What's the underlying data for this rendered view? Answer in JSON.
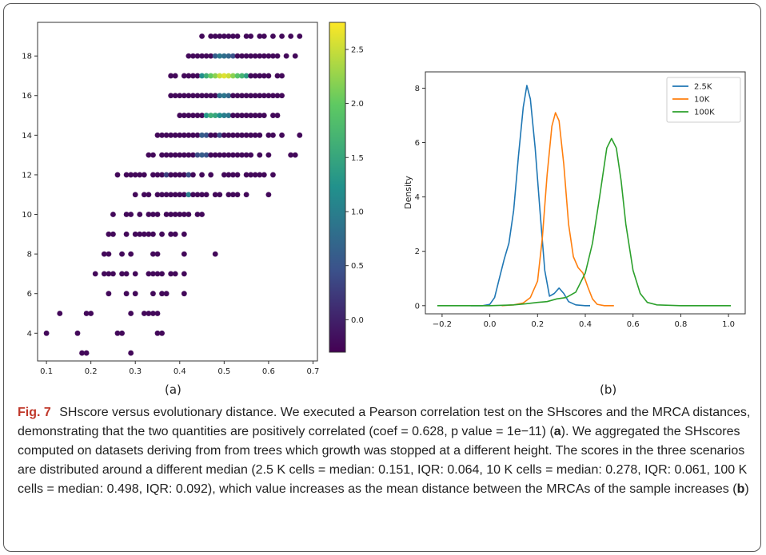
{
  "figure": {
    "panel_a_label": "(a)",
    "panel_b_label": "(b)",
    "caption": {
      "fig_label": "Fig. 7",
      "text_1": "SHscore versus evolutionary distance. We executed a Pearson correlation test on the SHscores and the MRCA distances, demonstrating that the two quantities are positively correlated (coef = 0.628, p value = 1e−11) (",
      "ref_a": "a",
      "text_2": "). We aggregated the SHscores computed on datasets deriving from from trees which growth was stopped at a different height. The scores in the three scenarios are distributed around a different median (2.5 K cells = median: 0.151, IQR: 0.064, 10 K cells = median: 0.278, IQR: 0.061, 100 K cells = median: 0.498, IQR: 0.092), which value increases as the mean distance between the MRCAs of the sample increases (",
      "ref_b": "b",
      "text_3": ")"
    }
  },
  "chart_data": [
    {
      "type": "scatter",
      "title": "",
      "xlabel": "",
      "ylabel": "",
      "xlim": [
        0.08,
        0.71
      ],
      "ylim": [
        2.6,
        19.7
      ],
      "xticks": [
        "0.1",
        "0.2",
        "0.3",
        "0.4",
        "0.5",
        "0.6",
        "0.7"
      ],
      "yticks": [
        "4",
        "6",
        "8",
        "10",
        "12",
        "14",
        "16",
        "18"
      ],
      "colorbar": {
        "min": -0.3,
        "max": 2.75,
        "ticks": [
          "0.0",
          "0.5",
          "1.0",
          "1.5",
          "2.0",
          "2.5"
        ],
        "colormap": "viridis"
      },
      "rows": [
        {
          "y": 19,
          "xs": [
            0.45,
            0.47,
            0.48,
            0.49,
            0.5,
            0.51,
            0.52,
            0.53,
            0.55,
            0.56,
            0.58,
            0.59,
            0.61,
            0.63,
            0.65,
            0.67
          ]
        },
        {
          "y": 18,
          "xs": [
            0.42,
            0.43,
            0.44,
            0.45,
            0.46,
            0.47,
            0.48,
            0.49,
            0.5,
            0.51,
            0.52,
            0.53,
            0.54,
            0.55,
            0.56,
            0.57,
            0.58,
            0.59,
            0.6,
            0.61,
            0.62,
            0.64,
            0.66
          ]
        },
        {
          "y": 17,
          "xs": [
            0.38,
            0.39,
            0.41,
            0.42,
            0.43,
            0.44,
            0.45,
            0.46,
            0.47,
            0.48,
            0.49,
            0.5,
            0.51,
            0.52,
            0.53,
            0.54,
            0.55,
            0.56,
            0.57,
            0.58,
            0.59,
            0.6,
            0.62,
            0.63
          ]
        },
        {
          "y": 16,
          "xs": [
            0.38,
            0.39,
            0.4,
            0.41,
            0.42,
            0.43,
            0.44,
            0.45,
            0.46,
            0.47,
            0.48,
            0.49,
            0.5,
            0.51,
            0.52,
            0.53,
            0.54,
            0.55,
            0.56,
            0.57,
            0.58,
            0.59,
            0.6,
            0.61,
            0.62,
            0.63
          ]
        },
        {
          "y": 15,
          "xs": [
            0.4,
            0.41,
            0.42,
            0.43,
            0.44,
            0.45,
            0.46,
            0.47,
            0.48,
            0.49,
            0.5,
            0.51,
            0.52,
            0.53,
            0.54,
            0.55,
            0.56,
            0.57,
            0.58,
            0.59,
            0.61,
            0.62
          ]
        },
        {
          "y": 14,
          "xs": [
            0.35,
            0.36,
            0.37,
            0.38,
            0.39,
            0.4,
            0.41,
            0.42,
            0.43,
            0.44,
            0.45,
            0.46,
            0.47,
            0.48,
            0.49,
            0.5,
            0.51,
            0.52,
            0.53,
            0.54,
            0.55,
            0.56,
            0.57,
            0.58,
            0.6,
            0.61,
            0.63,
            0.67
          ]
        },
        {
          "y": 13,
          "xs": [
            0.33,
            0.34,
            0.36,
            0.37,
            0.38,
            0.39,
            0.4,
            0.41,
            0.42,
            0.43,
            0.44,
            0.45,
            0.46,
            0.47,
            0.48,
            0.49,
            0.5,
            0.51,
            0.52,
            0.53,
            0.54,
            0.55,
            0.56,
            0.58,
            0.6,
            0.65,
            0.66
          ]
        },
        {
          "y": 12,
          "xs": [
            0.26,
            0.28,
            0.29,
            0.3,
            0.31,
            0.32,
            0.34,
            0.35,
            0.36,
            0.37,
            0.38,
            0.39,
            0.4,
            0.41,
            0.42,
            0.43,
            0.45,
            0.47,
            0.5,
            0.51,
            0.52,
            0.53,
            0.55,
            0.56,
            0.57,
            0.58,
            0.59,
            0.61
          ]
        },
        {
          "y": 11,
          "xs": [
            0.3,
            0.32,
            0.33,
            0.35,
            0.36,
            0.37,
            0.38,
            0.39,
            0.4,
            0.41,
            0.42,
            0.43,
            0.44,
            0.45,
            0.46,
            0.48,
            0.49,
            0.51,
            0.52,
            0.53,
            0.55,
            0.6
          ]
        },
        {
          "y": 10,
          "xs": [
            0.25,
            0.28,
            0.29,
            0.31,
            0.33,
            0.34,
            0.35,
            0.37,
            0.38,
            0.39,
            0.4,
            0.41,
            0.42,
            0.44,
            0.45
          ]
        },
        {
          "y": 9,
          "xs": [
            0.24,
            0.25,
            0.28,
            0.3,
            0.31,
            0.32,
            0.33,
            0.34,
            0.36,
            0.38,
            0.39,
            0.41
          ]
        },
        {
          "y": 8,
          "xs": [
            0.23,
            0.24,
            0.27,
            0.29,
            0.34,
            0.35,
            0.41,
            0.48
          ]
        },
        {
          "y": 7,
          "xs": [
            0.21,
            0.23,
            0.24,
            0.25,
            0.27,
            0.28,
            0.3,
            0.33,
            0.34,
            0.35,
            0.36,
            0.38,
            0.39,
            0.41
          ]
        },
        {
          "y": 6,
          "xs": [
            0.24,
            0.28,
            0.3,
            0.34,
            0.36,
            0.37,
            0.41
          ]
        },
        {
          "y": 5,
          "xs": [
            0.13,
            0.19,
            0.2,
            0.29,
            0.32,
            0.33,
            0.34,
            0.35
          ]
        },
        {
          "y": 4,
          "xs": [
            0.1,
            0.17,
            0.26,
            0.27,
            0.35,
            0.36
          ]
        },
        {
          "y": 3,
          "xs": [
            0.18,
            0.19,
            0.29
          ]
        }
      ],
      "hot_points": [
        {
          "x": 0.5,
          "y": 17,
          "level": 2.6
        },
        {
          "x": 0.49,
          "y": 17,
          "level": 2.5
        },
        {
          "x": 0.51,
          "y": 17,
          "level": 2.5
        },
        {
          "x": 0.48,
          "y": 17,
          "level": 2.2
        },
        {
          "x": 0.52,
          "y": 17,
          "level": 2.2
        },
        {
          "x": 0.47,
          "y": 17,
          "level": 2.0
        },
        {
          "x": 0.53,
          "y": 17,
          "level": 1.9
        },
        {
          "x": 0.54,
          "y": 17,
          "level": 1.7
        },
        {
          "x": 0.46,
          "y": 17,
          "level": 1.6
        },
        {
          "x": 0.55,
          "y": 17,
          "level": 1.4
        },
        {
          "x": 0.45,
          "y": 17,
          "level": 1.2
        },
        {
          "x": 0.47,
          "y": 15,
          "level": 1.6
        },
        {
          "x": 0.48,
          "y": 15,
          "level": 1.5
        },
        {
          "x": 0.46,
          "y": 15,
          "level": 1.3
        },
        {
          "x": 0.49,
          "y": 15,
          "level": 1.2
        },
        {
          "x": 0.5,
          "y": 15,
          "level": 1.0
        },
        {
          "x": 0.51,
          "y": 15,
          "level": 0.9
        },
        {
          "x": 0.5,
          "y": 16,
          "level": 0.9
        },
        {
          "x": 0.49,
          "y": 16,
          "level": 0.8
        },
        {
          "x": 0.51,
          "y": 16,
          "level": 0.7
        },
        {
          "x": 0.49,
          "y": 18,
          "level": 0.9
        },
        {
          "x": 0.5,
          "y": 18,
          "level": 0.8
        },
        {
          "x": 0.51,
          "y": 18,
          "level": 0.7
        },
        {
          "x": 0.48,
          "y": 18,
          "level": 0.6
        },
        {
          "x": 0.52,
          "y": 18,
          "level": 0.5
        },
        {
          "x": 0.45,
          "y": 13,
          "level": 0.6
        },
        {
          "x": 0.46,
          "y": 13,
          "level": 0.5
        },
        {
          "x": 0.44,
          "y": 13,
          "level": 0.4
        },
        {
          "x": 0.45,
          "y": 14,
          "level": 0.6
        },
        {
          "x": 0.46,
          "y": 14,
          "level": 0.5
        },
        {
          "x": 0.42,
          "y": 11,
          "level": 1.0
        },
        {
          "x": 0.42,
          "y": 12,
          "level": 0.4
        },
        {
          "x": 0.37,
          "y": 12,
          "level": 0.3
        },
        {
          "x": 0.49,
          "y": 14,
          "level": 0.4
        }
      ]
    },
    {
      "type": "line",
      "title": "",
      "xlabel": "",
      "ylabel": "Density",
      "xlim": [
        -0.27,
        1.07
      ],
      "ylim": [
        -0.3,
        8.6
      ],
      "xticks": [
        "−0.2",
        "0.0",
        "0.2",
        "0.4",
        "0.6",
        "0.8",
        "1.0"
      ],
      "yticks": [
        "0",
        "2",
        "4",
        "6",
        "8"
      ],
      "legend_position": "top-right",
      "series": [
        {
          "name": "2.5K",
          "color": "#1f77b4",
          "x": [
            -0.08,
            -0.03,
            0.0,
            0.02,
            0.04,
            0.06,
            0.08,
            0.1,
            0.12,
            0.14,
            0.155,
            0.17,
            0.19,
            0.21,
            0.23,
            0.25,
            0.27,
            0.29,
            0.31,
            0.33,
            0.36,
            0.4,
            0.42
          ],
          "y": [
            0.0,
            0.0,
            0.05,
            0.3,
            1.0,
            1.7,
            2.3,
            3.5,
            5.5,
            7.3,
            8.1,
            7.6,
            5.8,
            3.5,
            1.3,
            0.35,
            0.45,
            0.65,
            0.45,
            0.15,
            0.03,
            0.0,
            0.0
          ]
        },
        {
          "name": "10K",
          "color": "#ff7f0e",
          "x": [
            0.05,
            0.1,
            0.14,
            0.17,
            0.2,
            0.22,
            0.24,
            0.26,
            0.275,
            0.29,
            0.31,
            0.33,
            0.35,
            0.37,
            0.39,
            0.41,
            0.43,
            0.45,
            0.48,
            0.52
          ],
          "y": [
            0.0,
            0.03,
            0.1,
            0.3,
            0.9,
            2.5,
            4.8,
            6.6,
            7.1,
            6.8,
            5.2,
            3.0,
            1.8,
            1.4,
            1.2,
            0.7,
            0.25,
            0.05,
            0.0,
            0.0
          ]
        },
        {
          "name": "100K",
          "color": "#2ca02c",
          "x": [
            -0.22,
            -0.1,
            0.0,
            0.1,
            0.15,
            0.2,
            0.24,
            0.28,
            0.32,
            0.36,
            0.4,
            0.43,
            0.46,
            0.49,
            0.51,
            0.53,
            0.55,
            0.57,
            0.6,
            0.63,
            0.66,
            0.7,
            0.8,
            1.01
          ],
          "y": [
            0.0,
            0.0,
            0.0,
            0.03,
            0.07,
            0.12,
            0.15,
            0.25,
            0.3,
            0.5,
            1.2,
            2.3,
            4.0,
            5.8,
            6.15,
            5.8,
            4.6,
            3.0,
            1.3,
            0.45,
            0.12,
            0.03,
            0.0,
            0.0
          ]
        }
      ]
    }
  ]
}
